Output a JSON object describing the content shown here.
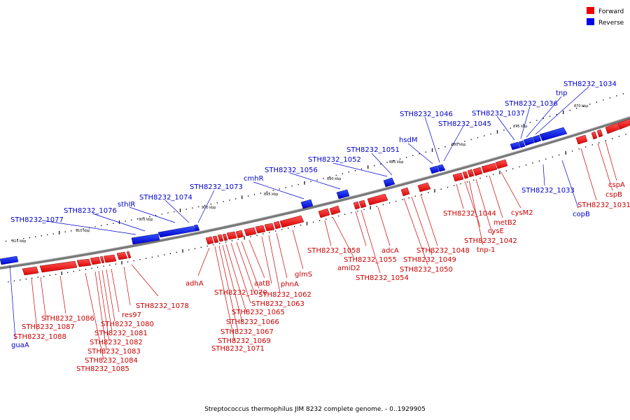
{
  "caption": "Streptococcus thermophilus JIM 8232 complete genome. - 0..1929905",
  "legend": {
    "forward": {
      "label": "Forward",
      "color": "#ee0000"
    },
    "reverse": {
      "label": "Reverse",
      "color": "#0000ee"
    }
  },
  "colors": {
    "forward_label": "#cc0000",
    "reverse_label": "#0000cc",
    "backbone": "#7a7a7a"
  },
  "kbp_ticks": [
    "915 kbp",
    "910 kbp",
    "905 kbp",
    "900 kbp",
    "895 kbp",
    "890 kbp",
    "885 kbp",
    "880 kbp",
    "875 kbp",
    "870 kbp"
  ],
  "genes_reverse": [
    "guaA",
    "STH8232_1077",
    "STH8232_1076",
    "sthIR",
    "STH8232_1074",
    "STH8232_1073",
    "cmhR",
    "STH8232_1056",
    "STH8232_1052",
    "STH8232_1051",
    "hsdM",
    "STH8232_1046",
    "STH8232_1045",
    "STH8232_1037",
    "STH8232_1036",
    "tnp",
    "STH8232_1034",
    "STH8232_1033",
    "copB"
  ],
  "genes_forward": [
    "STH8232_1086",
    "STH8232_1087",
    "STH8232_1088",
    "res97",
    "STH8232_1080",
    "STH8232_1081",
    "STH8232_1082",
    "STH8232_1083",
    "STH8232_1084",
    "STH8232_1085",
    "STH8232_1078",
    "adhA",
    "STH8232_1070",
    "aatB",
    "STH8232_1062",
    "phnA",
    "glmS",
    "STH8232_1063",
    "STH8232_1065",
    "STH8232_1066",
    "STH8232_1067",
    "STH8232_1069",
    "STH8232_1071",
    "STH8232_1058",
    "amiD2",
    "STH8232_1055",
    "adcA",
    "STH8232_1054",
    "STH8232_1048",
    "STH8232_1049",
    "STH8232_1050",
    "STH8232_1044",
    "cysE",
    "tnp-1",
    "STH8232_1042",
    "metB2",
    "cysM2",
    "cspA",
    "cspB",
    "STH8232_1031"
  ]
}
